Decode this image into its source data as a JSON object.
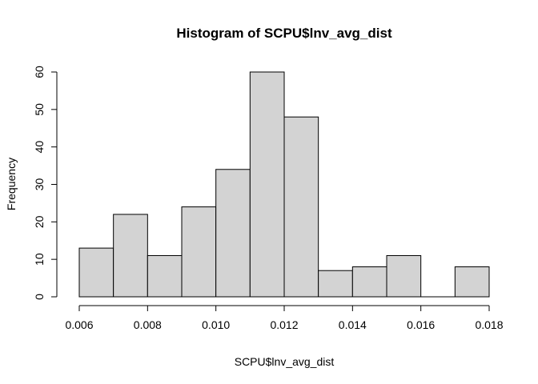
{
  "chart_data": {
    "type": "bar",
    "title": "Histogram of SCPU$lnv_avg_dist",
    "xlabel": "SCPU$lnv_avg_dist",
    "ylabel": "Frequency",
    "bins": [
      {
        "start": 0.006,
        "end": 0.007,
        "count": 13
      },
      {
        "start": 0.007,
        "end": 0.008,
        "count": 22
      },
      {
        "start": 0.008,
        "end": 0.009,
        "count": 11
      },
      {
        "start": 0.009,
        "end": 0.01,
        "count": 24
      },
      {
        "start": 0.01,
        "end": 0.011,
        "count": 34
      },
      {
        "start": 0.011,
        "end": 0.012,
        "count": 60
      },
      {
        "start": 0.012,
        "end": 0.013,
        "count": 48
      },
      {
        "start": 0.013,
        "end": 0.014,
        "count": 7
      },
      {
        "start": 0.014,
        "end": 0.015,
        "count": 8
      },
      {
        "start": 0.015,
        "end": 0.016,
        "count": 11
      },
      {
        "start": 0.016,
        "end": 0.017,
        "count": 0
      },
      {
        "start": 0.017,
        "end": 0.018,
        "count": 8
      }
    ],
    "x_ticks": [
      "0.006",
      "0.008",
      "0.010",
      "0.012",
      "0.014",
      "0.016",
      "0.018"
    ],
    "y_ticks": [
      "0",
      "10",
      "20",
      "30",
      "40",
      "50",
      "60"
    ],
    "xlim": [
      0.006,
      0.018
    ],
    "ylim": [
      0,
      60
    ],
    "grid": false,
    "colors": {
      "bar_fill": "#d3d3d3",
      "bar_stroke": "#000000",
      "axis": "#000000"
    }
  }
}
